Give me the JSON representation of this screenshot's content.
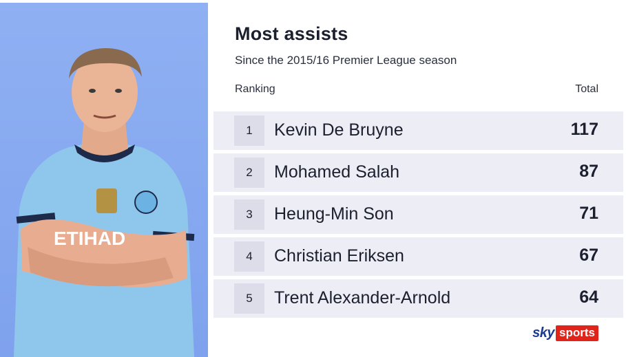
{
  "chart_data": {
    "type": "table",
    "title": "Most assists",
    "subtitle": "Since the 2015/16 Premier League season",
    "columns": [
      "Ranking",
      "Total"
    ],
    "rows": [
      {
        "rank": "1",
        "player": "Kevin De Bruyne",
        "total": "117"
      },
      {
        "rank": "2",
        "player": "Mohamed Salah",
        "total": "87"
      },
      {
        "rank": "3",
        "player": "Heung-Min Son",
        "total": "71"
      },
      {
        "rank": "4",
        "player": "Christian Eriksen",
        "total": "67"
      },
      {
        "rank": "5",
        "player": "Trent Alexander-Arnold",
        "total": "64"
      }
    ]
  },
  "branding": {
    "sky": "sky",
    "sports": "sports"
  },
  "photo": {
    "icon": "player-photo-icon",
    "shirt_sponsor": "ETIHAD"
  },
  "colors": {
    "panel_bg": "#8fb0f2",
    "row_bg": "#ededf5",
    "rank_bg": "#dcdde9",
    "text": "#1b1f2e",
    "shirt": "#8fc7ec",
    "sky_blue": "#1a3b8f",
    "sports_red": "#e2231a"
  }
}
